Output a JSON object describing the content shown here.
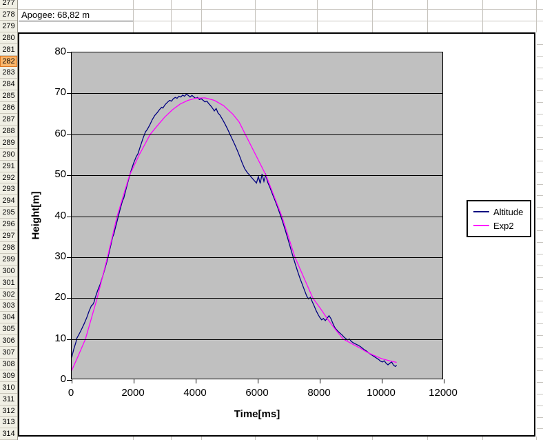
{
  "spreadsheet": {
    "apogee_text": "Apogee: 68,82 m",
    "selected_row": "282",
    "rows": [
      "277",
      "278",
      "279",
      "280",
      "281",
      "282",
      "283",
      "284",
      "285",
      "286",
      "287",
      "288",
      "289",
      "290",
      "291",
      "292",
      "293",
      "294",
      "295",
      "296",
      "297",
      "298",
      "299",
      "300",
      "301",
      "302",
      "303",
      "304",
      "305",
      "306",
      "307",
      "308",
      "309",
      "310",
      "311",
      "312",
      "313",
      "314"
    ],
    "colors": {
      "header_bg": "#F0EFE4",
      "selected_bg": "#FBB76B",
      "selected_border": "#DD7621",
      "gridline": "#C7C4BE"
    }
  },
  "chart_data": {
    "type": "line",
    "title": "",
    "xlabel": "Time[ms]",
    "ylabel": "Height[m]",
    "xlim": [
      0,
      12000
    ],
    "ylim": [
      0,
      80
    ],
    "x_ticks": [
      0,
      2000,
      4000,
      6000,
      8000,
      10000,
      12000
    ],
    "y_ticks": [
      0,
      10,
      20,
      30,
      40,
      50,
      60,
      70,
      80
    ],
    "grid": true,
    "plot_bg": "#C0C0C0",
    "legend_position": "right",
    "series": [
      {
        "name": "Altitude",
        "color": "#000080",
        "points": [
          [
            0,
            5.5
          ],
          [
            70,
            7.6
          ],
          [
            140,
            9.3
          ],
          [
            160,
            10.1
          ],
          [
            240,
            11.2
          ],
          [
            320,
            12.4
          ],
          [
            400,
            13.7
          ],
          [
            480,
            15.1
          ],
          [
            560,
            16.8
          ],
          [
            640,
            18.2
          ],
          [
            680,
            18.4
          ],
          [
            720,
            19.0
          ],
          [
            760,
            20.1
          ],
          [
            840,
            21.9
          ],
          [
            920,
            23.4
          ],
          [
            1000,
            25.3
          ],
          [
            1080,
            27.4
          ],
          [
            1160,
            29.6
          ],
          [
            1240,
            32.2
          ],
          [
            1320,
            34.9
          ],
          [
            1360,
            35.6
          ],
          [
            1400,
            36.9
          ],
          [
            1480,
            39.2
          ],
          [
            1560,
            41.6
          ],
          [
            1640,
            43.8
          ],
          [
            1680,
            44.4
          ],
          [
            1760,
            46.8
          ],
          [
            1840,
            49.1
          ],
          [
            1920,
            51.2
          ],
          [
            2000,
            53.0
          ],
          [
            2080,
            54.5
          ],
          [
            2140,
            55.3
          ],
          [
            2220,
            57.2
          ],
          [
            2300,
            59.0
          ],
          [
            2380,
            60.6
          ],
          [
            2440,
            61.2
          ],
          [
            2520,
            62.3
          ],
          [
            2600,
            63.6
          ],
          [
            2680,
            64.6
          ],
          [
            2760,
            65.3
          ],
          [
            2840,
            66.1
          ],
          [
            2900,
            66.6
          ],
          [
            2940,
            66.4
          ],
          [
            3020,
            67.3
          ],
          [
            3100,
            67.9
          ],
          [
            3160,
            68.3
          ],
          [
            3220,
            68.1
          ],
          [
            3280,
            68.7
          ],
          [
            3340,
            69.0
          ],
          [
            3400,
            68.8
          ],
          [
            3460,
            69.3
          ],
          [
            3520,
            69.1
          ],
          [
            3580,
            69.6
          ],
          [
            3640,
            69.3
          ],
          [
            3700,
            69.8
          ],
          [
            3760,
            69.5
          ],
          [
            3820,
            69.1
          ],
          [
            3880,
            69.5
          ],
          [
            3940,
            69.1
          ],
          [
            4000,
            68.8
          ],
          [
            4060,
            69.0
          ],
          [
            4120,
            68.5
          ],
          [
            4180,
            68.7
          ],
          [
            4240,
            68.3
          ],
          [
            4300,
            67.9
          ],
          [
            4360,
            68.1
          ],
          [
            4420,
            67.5
          ],
          [
            4480,
            67.0
          ],
          [
            4540,
            66.4
          ],
          [
            4600,
            65.7
          ],
          [
            4660,
            66.3
          ],
          [
            4720,
            65.2
          ],
          [
            4780,
            64.7
          ],
          [
            4860,
            63.7
          ],
          [
            4940,
            62.6
          ],
          [
            5020,
            61.4
          ],
          [
            5100,
            60.1
          ],
          [
            5180,
            58.8
          ],
          [
            5260,
            57.5
          ],
          [
            5340,
            56.1
          ],
          [
            5420,
            54.6
          ],
          [
            5500,
            53.0
          ],
          [
            5580,
            51.6
          ],
          [
            5660,
            50.7
          ],
          [
            5740,
            50.0
          ],
          [
            5820,
            49.3
          ],
          [
            5900,
            48.6
          ],
          [
            5960,
            48.1
          ],
          [
            6020,
            49.7
          ],
          [
            6080,
            48.0
          ],
          [
            6140,
            50.3
          ],
          [
            6200,
            48.5
          ],
          [
            6260,
            50.1
          ],
          [
            6320,
            48.3
          ],
          [
            6400,
            46.9
          ],
          [
            6480,
            45.3
          ],
          [
            6560,
            43.8
          ],
          [
            6640,
            42.2
          ],
          [
            6720,
            40.5
          ],
          [
            6800,
            38.7
          ],
          [
            6880,
            36.8
          ],
          [
            6960,
            34.8
          ],
          [
            7040,
            32.7
          ],
          [
            7120,
            30.6
          ],
          [
            7200,
            28.6
          ],
          [
            7280,
            26.7
          ],
          [
            7360,
            24.9
          ],
          [
            7440,
            23.3
          ],
          [
            7520,
            21.7
          ],
          [
            7580,
            20.5
          ],
          [
            7640,
            19.8
          ],
          [
            7700,
            20.2
          ],
          [
            7760,
            19.1
          ],
          [
            7820,
            18.1
          ],
          [
            7880,
            17.0
          ],
          [
            7940,
            16.1
          ],
          [
            8000,
            15.3
          ],
          [
            8060,
            14.7
          ],
          [
            8120,
            15.0
          ],
          [
            8180,
            14.5
          ],
          [
            8240,
            15.1
          ],
          [
            8300,
            15.7
          ],
          [
            8360,
            15.0
          ],
          [
            8420,
            13.9
          ],
          [
            8480,
            12.9
          ],
          [
            8540,
            12.3
          ],
          [
            8600,
            11.8
          ],
          [
            8660,
            11.4
          ],
          [
            8720,
            11.0
          ],
          [
            8780,
            10.5
          ],
          [
            8840,
            10.1
          ],
          [
            8900,
            9.8
          ],
          [
            8960,
            10.0
          ],
          [
            9020,
            9.4
          ],
          [
            9100,
            9.0
          ],
          [
            9180,
            8.7
          ],
          [
            9260,
            8.4
          ],
          [
            9340,
            8.0
          ],
          [
            9420,
            7.5
          ],
          [
            9500,
            7.1
          ],
          [
            9580,
            6.6
          ],
          [
            9660,
            6.2
          ],
          [
            9740,
            5.8
          ],
          [
            9820,
            5.4
          ],
          [
            9900,
            5.0
          ],
          [
            9960,
            4.6
          ],
          [
            10020,
            4.4
          ],
          [
            10080,
            4.7
          ],
          [
            10140,
            4.1
          ],
          [
            10200,
            3.7
          ],
          [
            10260,
            4.1
          ],
          [
            10320,
            4.4
          ],
          [
            10380,
            3.6
          ],
          [
            10440,
            3.3
          ],
          [
            10480,
            3.6
          ]
        ]
      },
      {
        "name": "Exp2",
        "color": "#FF00FF",
        "points": [
          [
            0,
            2.3
          ],
          [
            200,
            5.7
          ],
          [
            444,
            10
          ],
          [
            633,
            15
          ],
          [
            822,
            20
          ],
          [
            989,
            25
          ],
          [
            1156,
            30
          ],
          [
            1311,
            35
          ],
          [
            1467,
            40
          ],
          [
            1667,
            45
          ],
          [
            1867,
            50
          ],
          [
            2180,
            55
          ],
          [
            2533,
            60
          ],
          [
            2750,
            62
          ],
          [
            3000,
            64.2
          ],
          [
            3250,
            66
          ],
          [
            3500,
            67.4
          ],
          [
            3750,
            68.3
          ],
          [
            4000,
            68.8
          ],
          [
            4300,
            68.9
          ],
          [
            4600,
            68.3
          ],
          [
            4900,
            67.0
          ],
          [
            5200,
            64.9
          ],
          [
            5400,
            63.0
          ],
          [
            5600,
            60.0
          ],
          [
            5933,
            55
          ],
          [
            6267,
            50
          ],
          [
            6522,
            45
          ],
          [
            6778,
            40
          ],
          [
            6989,
            35
          ],
          [
            7200,
            30
          ],
          [
            7489,
            25
          ],
          [
            7778,
            20
          ],
          [
            8000,
            17.7
          ],
          [
            8250,
            14.9
          ],
          [
            8500,
            12.4
          ],
          [
            8756,
            10
          ],
          [
            9000,
            9.0
          ],
          [
            9250,
            8.0
          ],
          [
            9500,
            6.9
          ],
          [
            9750,
            6.0
          ],
          [
            10000,
            5.2
          ],
          [
            10250,
            4.7
          ],
          [
            10480,
            4.3
          ]
        ]
      }
    ]
  }
}
